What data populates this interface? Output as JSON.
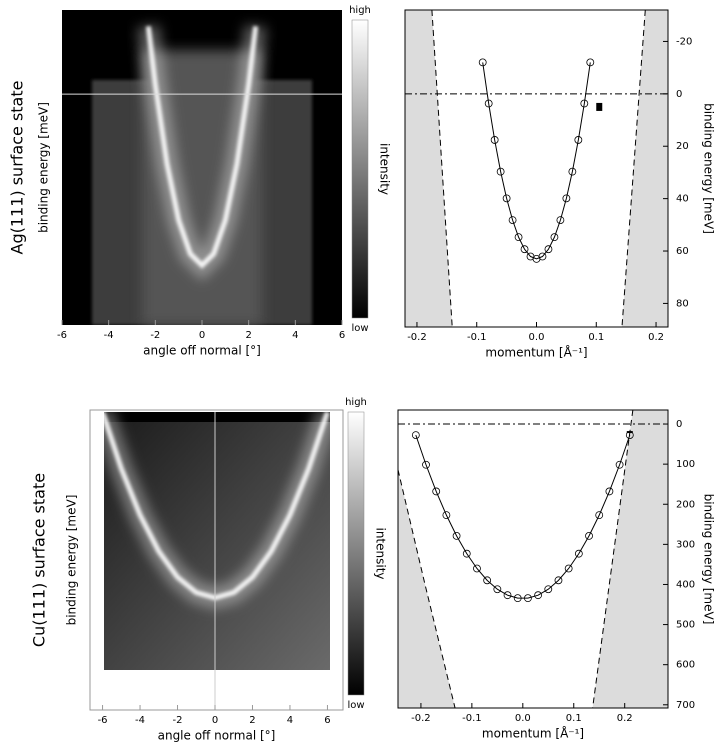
{
  "chart_data": [
    {
      "type": "heatmap",
      "row_label": "Ag(111) surface state",
      "xlabel": "angle off normal [°]",
      "ylabel": "binding energy [meV]",
      "xlim": [
        -6,
        6
      ],
      "xticks": [
        -6,
        -4,
        -2,
        0,
        2,
        4,
        6
      ],
      "ylim": [
        -31,
        85
      ],
      "y_reversed": true,
      "hline": 0,
      "colorbar": {
        "label": "intensity",
        "high": "high",
        "low": "low"
      },
      "x": [
        -2.3,
        -2,
        -1.5,
        -1,
        -0.5,
        0,
        0.5,
        1,
        1.5,
        2,
        2.3
      ],
      "values": [
        -25,
        -3.5,
        25.6,
        46.4,
        58.8,
        63,
        58.8,
        46.4,
        25.6,
        -3.5,
        -25
      ]
    },
    {
      "type": "scatter",
      "xlabel": "momentum [Å⁻¹]",
      "ylabel": "binding energy [meV]",
      "xlim": [
        -0.22,
        0.22
      ],
      "xticks": [
        -0.2,
        -0.1,
        {
          "value": 0,
          "label": "0.0"
        },
        0.1,
        0.2
      ],
      "ylim": [
        -32,
        89
      ],
      "y_reversed": true,
      "yticks": [
        -20,
        0,
        20,
        40,
        60,
        80
      ],
      "hline": 0,
      "x": [
        -0.09,
        -0.08,
        -0.07,
        -0.06,
        -0.05,
        -0.04,
        -0.03,
        -0.02,
        -0.01,
        0,
        0.01,
        0.02,
        0.03,
        0.04,
        0.05,
        0.06,
        0.07,
        0.08,
        0.09
      ],
      "values": [
        -12,
        3.7,
        17.6,
        29.7,
        39.9,
        48.2,
        54.7,
        59.3,
        62.1,
        63,
        62.1,
        59.3,
        54.7,
        48.2,
        39.9,
        29.7,
        17.6,
        3.7,
        -12
      ],
      "markers": [
        {
          "x": 0.105,
          "y": 5
        }
      ],
      "boundaries": [
        {
          "side": "left",
          "x": [
            -0.175,
            -0.141
          ],
          "y": [
            -32,
            89
          ]
        },
        {
          "side": "right",
          "x": [
            0.182,
            0.143
          ],
          "y": [
            -32,
            89
          ]
        }
      ]
    },
    {
      "type": "heatmap",
      "row_label": "Cu(111) surface state",
      "xlabel": "angle off normal [°]",
      "ylabel": "binding energy [meV]",
      "xlim": [
        -6.67,
        6.83
      ],
      "xticks": [
        -6,
        -4,
        -2,
        0,
        2,
        4,
        6
      ],
      "ylim": [
        -35,
        708
      ],
      "y_reversed": true,
      "vline": 0,
      "colorbar": {
        "label": "intensity",
        "high": "high",
        "low": "low"
      },
      "x": [
        -6,
        -5,
        -4,
        -3,
        -2,
        -1,
        0,
        1,
        2,
        3,
        4,
        5,
        6
      ],
      "values": [
        -30,
        110,
        225,
        315,
        379,
        417,
        430,
        417,
        379,
        315,
        225,
        110,
        -30
      ]
    },
    {
      "type": "scatter",
      "xlabel": "momentum [Å⁻¹]",
      "ylabel": "binding energy [meV]",
      "xlim": [
        -0.245,
        0.285
      ],
      "xticks": [
        -0.2,
        -0.1,
        {
          "value": 0,
          "label": "0.0"
        },
        0.1,
        0.2
      ],
      "ylim": [
        -35,
        708
      ],
      "y_reversed": true,
      "yticks": [
        0,
        100,
        200,
        300,
        400,
        500,
        600,
        700
      ],
      "hline": 0,
      "x": [
        -0.21,
        -0.19,
        -0.17,
        -0.15,
        -0.13,
        -0.11,
        -0.09,
        -0.07,
        -0.05,
        -0.03,
        -0.01,
        0.01,
        0.03,
        0.05,
        0.07,
        0.09,
        0.11,
        0.13,
        0.15,
        0.17,
        0.19,
        0.21
      ],
      "values": [
        27.6,
        101.5,
        168,
        227.1,
        278.9,
        323.2,
        360.2,
        389.7,
        411.9,
        426.7,
        434.1,
        434.1,
        426.7,
        411.9,
        389.7,
        360.2,
        323.2,
        278.9,
        227.1,
        168,
        101.5,
        27.6
      ],
      "markers": [
        {
          "x": 0.21,
          "y": 20
        }
      ],
      "boundaries": [
        {
          "side": "left",
          "x": [
            -0.245,
            -0.192,
            -0.133
          ],
          "y": [
            114,
            400,
            708
          ]
        },
        {
          "side": "right",
          "x": [
            0.216,
            0.137
          ],
          "y": [
            -35,
            708
          ]
        }
      ]
    }
  ]
}
